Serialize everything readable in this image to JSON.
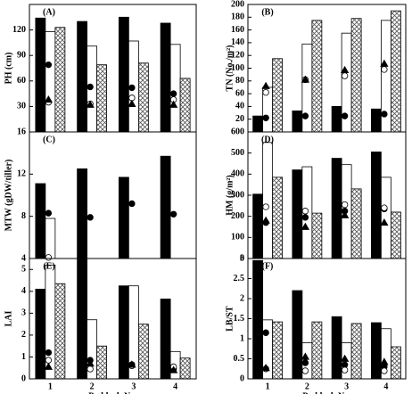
{
  "chart_data": [
    {
      "type": "bar",
      "panel_label": "(A)",
      "y_label": "PH (cm)",
      "categories": [
        null,
        null,
        null,
        null
      ],
      "ylim": [
        0,
        150
      ],
      "yticks": [
        30,
        60,
        90,
        120
      ],
      "series": [
        {
          "kind": "bar",
          "color": "#000000",
          "values": [
            134,
            130,
            135,
            128
          ]
        },
        {
          "kind": "bar",
          "color": "#ffffff",
          "values": [
            118,
            101,
            107,
            103
          ]
        },
        {
          "kind": "bar",
          "pattern": "crosshatch",
          "values": [
            123,
            79,
            81,
            63
          ]
        },
        {
          "kind": "point",
          "marker": "circle",
          "color": "#000000",
          "values": [
            79,
            53,
            52,
            45
          ]
        },
        {
          "kind": "point",
          "marker": "circle",
          "color": "#ffffff",
          "values": [
            35,
            33,
            40,
            38
          ]
        },
        {
          "kind": "point",
          "marker": "triangle",
          "color": "#000000",
          "values": [
            38,
            32,
            33,
            32
          ]
        }
      ]
    },
    {
      "type": "bar",
      "panel_label": "(B)",
      "y_label": "TN (No./m²)",
      "categories": [
        null,
        null,
        null,
        null
      ],
      "ylim": [
        0,
        200
      ],
      "yticks": [
        20,
        40,
        60,
        80,
        100,
        120,
        140,
        160,
        180,
        200
      ],
      "series": [
        {
          "kind": "bar",
          "color": "#000000",
          "values": [
            25,
            33,
            40,
            36
          ]
        },
        {
          "kind": "bar",
          "color": "#ffffff",
          "values": [
            70,
            138,
            155,
            175
          ]
        },
        {
          "kind": "bar",
          "pattern": "crosshatch",
          "values": [
            115,
            175,
            178,
            190
          ]
        },
        {
          "kind": "point",
          "marker": "circle",
          "color": "#000000",
          "values": [
            22,
            25,
            25,
            28
          ]
        },
        {
          "kind": "point",
          "marker": "circle",
          "color": "#ffffff",
          "values": [
            62,
            82,
            88,
            98
          ]
        },
        {
          "kind": "point",
          "marker": "triangle",
          "color": "#000000",
          "values": [
            72,
            82,
            97,
            107
          ]
        }
      ]
    },
    {
      "type": "bar",
      "panel_label": "(C)",
      "y_label": "MTW (gDW/tiller)",
      "categories": [
        null,
        null,
        null,
        null
      ],
      "ylim": [
        4,
        16
      ],
      "yticks": [
        4,
        8,
        12,
        16
      ],
      "series": [
        {
          "kind": "bar",
          "color": "#000000",
          "values": [
            11.1,
            12.5,
            11.7,
            13.7
          ]
        },
        {
          "kind": "bar",
          "color": "#ffffff",
          "values": [
            7.8,
            null,
            null,
            null
          ]
        },
        {
          "kind": "bar",
          "pattern": "crosshatch",
          "values": [
            null,
            null,
            null,
            null
          ]
        },
        {
          "kind": "point",
          "marker": "circle",
          "color": "#000000",
          "values": [
            8.3,
            7.9,
            9.2,
            8.2
          ]
        },
        {
          "kind": "point",
          "marker": "circle",
          "color": "#ffffff",
          "values": [
            4.1,
            null,
            null,
            null
          ]
        },
        {
          "kind": "point",
          "marker": "triangle",
          "color": "#000000",
          "values": [
            null,
            null,
            null,
            null
          ]
        }
      ]
    },
    {
      "type": "bar",
      "panel_label": "(D)",
      "y_label": "HM (g/m²)",
      "categories": [
        null,
        null,
        null,
        null
      ],
      "ylim": [
        0,
        600
      ],
      "yticks": [
        0,
        100,
        200,
        300,
        400,
        500,
        600
      ],
      "series": [
        {
          "kind": "bar",
          "color": "#000000",
          "values": [
            305,
            420,
            475,
            505
          ]
        },
        {
          "kind": "bar",
          "color": "#ffffff",
          "values": [
            550,
            435,
            445,
            385
          ]
        },
        {
          "kind": "bar",
          "pattern": "crosshatch",
          "values": [
            385,
            215,
            330,
            220
          ]
        },
        {
          "kind": "point",
          "marker": "circle",
          "color": "#000000",
          "values": [
            170,
            195,
            225,
            235
          ]
        },
        {
          "kind": "point",
          "marker": "circle",
          "color": "#ffffff",
          "values": [
            245,
            225,
            255,
            240
          ]
        },
        {
          "kind": "point",
          "marker": "triangle",
          "color": "#000000",
          "values": [
            180,
            150,
            205,
            170
          ]
        }
      ]
    },
    {
      "type": "bar",
      "panel_label": "(E)",
      "y_label": "LAI",
      "x_label": "Paddock No.",
      "categories": [
        "1",
        "2",
        "3",
        "4"
      ],
      "ylim": [
        0,
        5.5
      ],
      "yticks": [
        0,
        1,
        2,
        3,
        4,
        5
      ],
      "series": [
        {
          "kind": "bar",
          "color": "#000000",
          "values": [
            4.1,
            5.5,
            4.25,
            3.65
          ]
        },
        {
          "kind": "bar",
          "color": "#ffffff",
          "values": [
            5.2,
            2.7,
            4.25,
            1.25
          ]
        },
        {
          "kind": "bar",
          "pattern": "crosshatch",
          "values": [
            4.35,
            1.5,
            2.5,
            0.95
          ]
        },
        {
          "kind": "point",
          "marker": "circle",
          "color": "#000000",
          "values": [
            1.2,
            0.85,
            0.65,
            0.45
          ]
        },
        {
          "kind": "point",
          "marker": "circle",
          "color": "#ffffff",
          "values": [
            0.85,
            0.45,
            0.6,
            0.55
          ]
        },
        {
          "kind": "point",
          "marker": "triangle",
          "color": "#000000",
          "values": [
            0.55,
            0.7,
            0.65,
            0.4
          ]
        }
      ]
    },
    {
      "type": "bar",
      "panel_label": "(F)",
      "y_label": "LB/ST",
      "x_label": "Paddock No.",
      "categories": [
        "1",
        "2",
        "3",
        "4"
      ],
      "ylim": [
        0,
        3
      ],
      "yticks": [
        0,
        0.5,
        1,
        1.5,
        2,
        2.5,
        3
      ],
      "series": [
        {
          "kind": "bar",
          "color": "#000000",
          "values": [
            2.95,
            2.2,
            1.55,
            1.4
          ]
        },
        {
          "kind": "bar",
          "color": "#ffffff",
          "values": [
            1.47,
            0.9,
            0.9,
            1.25
          ]
        },
        {
          "kind": "bar",
          "pattern": "crosshatch",
          "values": [
            1.42,
            1.42,
            1.38,
            0.8
          ]
        },
        {
          "kind": "point",
          "marker": "circle",
          "color": "#000000",
          "values": [
            1.15,
            0.4,
            0.35,
            0.3
          ]
        },
        {
          "kind": "point",
          "marker": "circle",
          "color": "#ffffff",
          "values": [
            0.25,
            0.2,
            0.22,
            0.2
          ]
        },
        {
          "kind": "point",
          "marker": "triangle",
          "color": "#000000",
          "values": [
            0.27,
            0.55,
            0.5,
            0.42
          ]
        }
      ]
    }
  ]
}
